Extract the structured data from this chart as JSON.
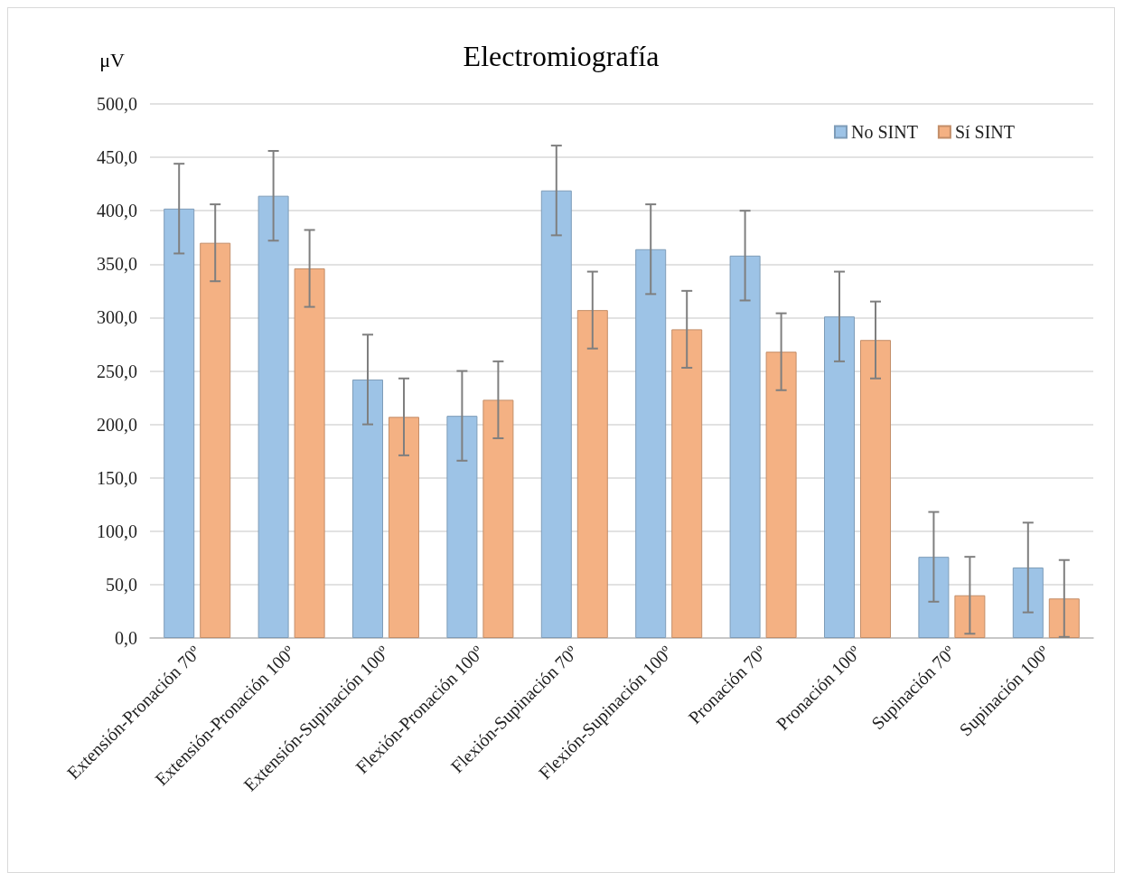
{
  "chart_data": {
    "type": "bar",
    "title": "Electromiografía",
    "ylabel": "μV",
    "categories": [
      "Extensión-Pronación 70º",
      "Extensión-Pronación 100º",
      "Extensión-Supinación 100º",
      "Flexión-Pronación 100º",
      "Flexión-Supinación 70º",
      "Flexión-Supinación 100º",
      "Pronación 70º",
      "Pronación 100º",
      "Supinación 70º",
      "Supinación 100º"
    ],
    "series": [
      {
        "name": "No SINT",
        "color": "#9dc3e6",
        "values": [
          402,
          414,
          242,
          208,
          419,
          364,
          358,
          301,
          76,
          66
        ],
        "errors": [
          42,
          42,
          42,
          42,
          42,
          42,
          42,
          42,
          42,
          42
        ]
      },
      {
        "name": "Sí SINT",
        "color": "#f4b183",
        "values": [
          370,
          346,
          207,
          223,
          307,
          289,
          268,
          279,
          40,
          37
        ],
        "errors": [
          36,
          36,
          36,
          36,
          36,
          36,
          36,
          36,
          36,
          36
        ]
      }
    ],
    "ylim": [
      0,
      500
    ],
    "yticks": [
      {
        "value": 0,
        "label": "0,0"
      },
      {
        "value": 50,
        "label": "50,0"
      },
      {
        "value": 100,
        "label": "100,0"
      },
      {
        "value": 150,
        "label": "150,0"
      },
      {
        "value": 200,
        "label": "200,0"
      },
      {
        "value": 250,
        "label": "250,0"
      },
      {
        "value": 300,
        "label": "300,0"
      },
      {
        "value": 350,
        "label": "350,0"
      },
      {
        "value": 400,
        "label": "400,0"
      },
      {
        "value": 450,
        "label": "450,0"
      },
      {
        "value": 500,
        "label": "500,0"
      }
    ],
    "grid": "y",
    "legend": "top right"
  }
}
